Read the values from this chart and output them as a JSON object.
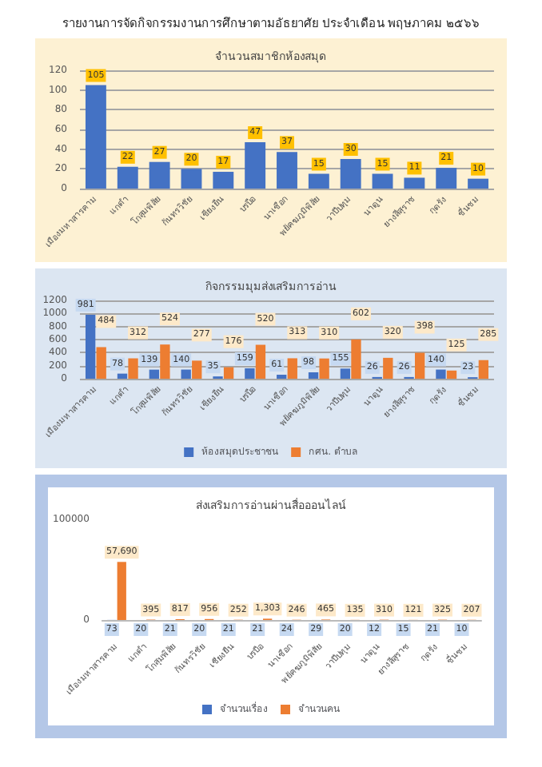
{
  "chart_data": [
    {
      "type": "bar",
      "title": "รายงานการจัดกิจกรรมงานการศึกษาตามอัธยาศัย ประจำเดือน พฤษภาคม ๒๕๖๖",
      "subtitle": "จำนวนสมาชิกห้องสมุด",
      "categories": [
        "เมืองมหาสารคาม",
        "แกดำ",
        "โกสุมพิสัย",
        "กันทรวิชัย",
        "เชียงยืน",
        "บรบือ",
        "นาเชือก",
        "พยัคฆภูมิพิสัย",
        "วาปีปทุม",
        "นาดูน",
        "ยางสีสุราช",
        "กุดรัง",
        "ชื่นชม"
      ],
      "series": [
        {
          "color": "#4472c4",
          "values": [
            105,
            22,
            27,
            20,
            17,
            47,
            37,
            15,
            30,
            15,
            11,
            21,
            10
          ]
        }
      ],
      "ylim": [
        0,
        120
      ],
      "yticks": [
        0,
        20,
        40,
        60,
        80,
        100,
        120
      ],
      "grid": "y",
      "data_labels": true
    },
    {
      "type": "bar",
      "title": "กิจกรรมมุมส่งเสริมการอ่าน",
      "categories": [
        "เมืองมหาสารคาม",
        "แกดำ",
        "โกสุมพิสัย",
        "กันทรวิชัย",
        "เชียงยืน",
        "บรบือ",
        "นาเชือก",
        "พยัคฆภูมิพิสัย",
        "วาปีปทุม",
        "นาดูน",
        "ยางสีสุราช",
        "กุดรัง",
        "ชื่นชม"
      ],
      "series": [
        {
          "name": "ห้องสมุดประชาชน",
          "color": "#4472c4",
          "values": [
            981,
            78,
            139,
            140,
            35,
            159,
            61,
            98,
            155,
            26,
            26,
            140,
            23
          ]
        },
        {
          "name": "กศน. ตำบล",
          "color": "#ed7d31",
          "values": [
            484,
            312,
            524,
            277,
            176,
            520,
            313,
            310,
            602,
            320,
            398,
            125,
            285
          ]
        }
      ],
      "ylim": [
        0,
        1200
      ],
      "yticks": [
        0,
        200,
        400,
        600,
        800,
        1000,
        1200
      ],
      "grid": "y",
      "data_labels": true,
      "legend": "bottom"
    },
    {
      "type": "bar",
      "title": "ส่งเสริมการอ่านผ่านสื่อออนไลน์",
      "categories": [
        "เมืองมหาสารคาม",
        "แกดำ",
        "โกสุมพิสัย",
        "กันทรวิชัย",
        "เชียงยืน",
        "บรบือ",
        "นาเชือก",
        "พยัคฆภูมิพิสัย",
        "วาปีปทุม",
        "นาดูน",
        "ยางสีสุราช",
        "กุดรัง",
        "ชื่นชม"
      ],
      "series": [
        {
          "name": "จำนวนเรื่อง",
          "color": "#4472c4",
          "values": [
            73,
            20,
            21,
            20,
            21,
            21,
            24,
            29,
            20,
            12,
            15,
            21,
            10
          ],
          "value_labels": [
            "73",
            "20",
            "21",
            "20",
            "21",
            "21",
            "24",
            "29",
            "20",
            "12",
            "15",
            "21",
            "10"
          ]
        },
        {
          "name": "จำนวนคน",
          "color": "#ed7d31",
          "values": [
            57690,
            395,
            817,
            956,
            252,
            1303,
            246,
            465,
            135,
            310,
            121,
            325,
            207
          ],
          "value_labels": [
            "57,690",
            "395",
            "817",
            "956",
            "252",
            "1,303",
            "246",
            "465",
            "135",
            "310",
            "121",
            "325",
            "207"
          ]
        }
      ],
      "ylim": [
        0,
        100000
      ],
      "yticks": [
        0,
        100000
      ],
      "legend": "bottom"
    }
  ]
}
